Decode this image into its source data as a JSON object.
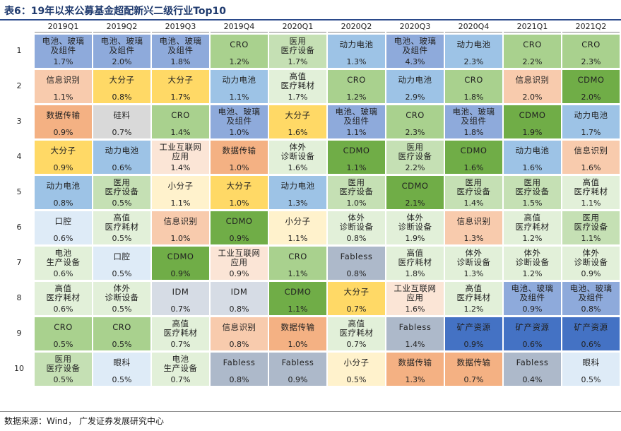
{
  "title": "表6：19年以来公募基金超配新兴二级行业Top10",
  "columns": [
    "2019Q1",
    "2019Q2",
    "2019Q3",
    "2019Q4",
    "2020Q1",
    "2020Q2",
    "2020Q3",
    "2020Q4",
    "2021Q1",
    "2021Q2"
  ],
  "row_numbers": [
    "1",
    "2",
    "3",
    "4",
    "5",
    "6",
    "7",
    "8",
    "9",
    "10"
  ],
  "colors": {
    "battery_glass": "#8eaadb",
    "power_battery": "#9dc3e6",
    "cro": "#a9d18e",
    "cdmo": "#70ad47",
    "medical_device": "#c5e0b4",
    "high_value_consumables": "#e2f0d9",
    "info_recognition": "#f8cbad",
    "macromolecule": "#ffd966",
    "data_transmission": "#f4b183",
    "silicon": "#d9d9d9",
    "ivd": "#e2f0d9",
    "industrial_internet": "#fbe5d6",
    "small_molecule": "#fff2cc",
    "oral": "#deebf7",
    "production_equipment": "#e2f0d9",
    "fabless": "#adb9ca",
    "idm": "#d6dce5",
    "mining": "#4472c4",
    "ophthalmology": "#deebf7"
  },
  "rows": [
    [
      {
        "name": "电池、玻璃\n及组件",
        "pct": "1.7%",
        "bg": "#8eaadb"
      },
      {
        "name": "电池、玻璃\n及组件",
        "pct": "2.0%",
        "bg": "#8eaadb"
      },
      {
        "name": "电池、玻璃\n及组件",
        "pct": "1.8%",
        "bg": "#8eaadb"
      },
      {
        "name": "CRO",
        "pct": "1.2%",
        "bg": "#a9d18e"
      },
      {
        "name": "医用\n医疗设备",
        "pct": "1.7%",
        "bg": "#c5e0b4"
      },
      {
        "name": "动力电池",
        "pct": "1.3%",
        "bg": "#9dc3e6"
      },
      {
        "name": "电池、玻璃\n及组件",
        "pct": "4.3%",
        "bg": "#8eaadb"
      },
      {
        "name": "动力电池",
        "pct": "2.3%",
        "bg": "#9dc3e6"
      },
      {
        "name": "CRO",
        "pct": "2.2%",
        "bg": "#a9d18e"
      },
      {
        "name": "CRO",
        "pct": "2.3%",
        "bg": "#a9d18e"
      }
    ],
    [
      {
        "name": "信息识别",
        "pct": "1.1%",
        "bg": "#f8cbad"
      },
      {
        "name": "大分子",
        "pct": "0.8%",
        "bg": "#ffd966"
      },
      {
        "name": "大分子",
        "pct": "1.7%",
        "bg": "#ffd966"
      },
      {
        "name": "动力电池",
        "pct": "1.1%",
        "bg": "#9dc3e6"
      },
      {
        "name": "高值\n医疗耗材",
        "pct": "1.7%",
        "bg": "#e2f0d9"
      },
      {
        "name": "CRO",
        "pct": "1.2%",
        "bg": "#a9d18e"
      },
      {
        "name": "动力电池",
        "pct": "2.9%",
        "bg": "#9dc3e6"
      },
      {
        "name": "CRO",
        "pct": "1.8%",
        "bg": "#a9d18e"
      },
      {
        "name": "信息识别",
        "pct": "2.0%",
        "bg": "#f8cbad"
      },
      {
        "name": "CDMO",
        "pct": "2.0%",
        "bg": "#70ad47"
      }
    ],
    [
      {
        "name": "数据传输",
        "pct": "0.9%",
        "bg": "#f4b183"
      },
      {
        "name": "硅料",
        "pct": "0.7%",
        "bg": "#d9d9d9"
      },
      {
        "name": "CRO",
        "pct": "1.4%",
        "bg": "#a9d18e"
      },
      {
        "name": "电池、玻璃\n及组件",
        "pct": "1.0%",
        "bg": "#8eaadb"
      },
      {
        "name": "大分子",
        "pct": "1.6%",
        "bg": "#ffd966"
      },
      {
        "name": "电池、玻璃\n及组件",
        "pct": "1.1%",
        "bg": "#8eaadb"
      },
      {
        "name": "CRO",
        "pct": "2.3%",
        "bg": "#a9d18e"
      },
      {
        "name": "电池、玻璃\n及组件",
        "pct": "1.8%",
        "bg": "#8eaadb"
      },
      {
        "name": "CDMO",
        "pct": "1.9%",
        "bg": "#70ad47"
      },
      {
        "name": "动力电池",
        "pct": "1.7%",
        "bg": "#9dc3e6"
      }
    ],
    [
      {
        "name": "大分子",
        "pct": "0.9%",
        "bg": "#ffd966"
      },
      {
        "name": "动力电池",
        "pct": "0.6%",
        "bg": "#9dc3e6"
      },
      {
        "name": "工业互联网\n应用",
        "pct": "1.4%",
        "bg": "#fbe5d6"
      },
      {
        "name": "数据传输",
        "pct": "1.0%",
        "bg": "#f4b183"
      },
      {
        "name": "体外\n诊断设备",
        "pct": "1.6%",
        "bg": "#e2f0d9"
      },
      {
        "name": "CDMO",
        "pct": "1.1%",
        "bg": "#70ad47"
      },
      {
        "name": "医用\n医疗设备",
        "pct": "2.2%",
        "bg": "#c5e0b4"
      },
      {
        "name": "CDMO",
        "pct": "1.6%",
        "bg": "#70ad47"
      },
      {
        "name": "动力电池",
        "pct": "1.6%",
        "bg": "#9dc3e6"
      },
      {
        "name": "信息识别",
        "pct": "1.6%",
        "bg": "#f8cbad"
      }
    ],
    [
      {
        "name": "动力电池",
        "pct": "0.8%",
        "bg": "#9dc3e6"
      },
      {
        "name": "医用\n医疗设备",
        "pct": "0.5%",
        "bg": "#c5e0b4"
      },
      {
        "name": "小分子",
        "pct": "1.1%",
        "bg": "#fff2cc"
      },
      {
        "name": "大分子",
        "pct": "1.0%",
        "bg": "#ffd966"
      },
      {
        "name": "动力电池",
        "pct": "1.3%",
        "bg": "#9dc3e6"
      },
      {
        "name": "医用\n医疗设备",
        "pct": "1.0%",
        "bg": "#c5e0b4"
      },
      {
        "name": "CDMO",
        "pct": "2.1%",
        "bg": "#70ad47"
      },
      {
        "name": "医用\n医疗设备",
        "pct": "1.4%",
        "bg": "#c5e0b4"
      },
      {
        "name": "医用\n医疗设备",
        "pct": "1.5%",
        "bg": "#c5e0b4"
      },
      {
        "name": "高值\n医疗耗材",
        "pct": "1.1%",
        "bg": "#e2f0d9"
      }
    ],
    [
      {
        "name": "口腔",
        "pct": "0.6%",
        "bg": "#deebf7"
      },
      {
        "name": "高值\n医疗耗材",
        "pct": "0.5%",
        "bg": "#e2f0d9"
      },
      {
        "name": "信息识别",
        "pct": "1.0%",
        "bg": "#f8cbad"
      },
      {
        "name": "CDMO",
        "pct": "0.9%",
        "bg": "#70ad47"
      },
      {
        "name": "小分子",
        "pct": "1.1%",
        "bg": "#fff2cc"
      },
      {
        "name": "体外\n诊断设备",
        "pct": "0.8%",
        "bg": "#e2f0d9"
      },
      {
        "name": "体外\n诊断设备",
        "pct": "1.9%",
        "bg": "#e2f0d9"
      },
      {
        "name": "信息识别",
        "pct": "1.3%",
        "bg": "#f8cbad"
      },
      {
        "name": "高值\n医疗耗材",
        "pct": "1.2%",
        "bg": "#e2f0d9"
      },
      {
        "name": "医用\n医疗设备",
        "pct": "1.1%",
        "bg": "#c5e0b4"
      }
    ],
    [
      {
        "name": "电池\n生产设备",
        "pct": "0.6%",
        "bg": "#e2f0d9"
      },
      {
        "name": "口腔",
        "pct": "0.5%",
        "bg": "#deebf7"
      },
      {
        "name": "CDMO",
        "pct": "0.9%",
        "bg": "#70ad47"
      },
      {
        "name": "工业互联网\n应用",
        "pct": "0.9%",
        "bg": "#fbe5d6"
      },
      {
        "name": "CRO",
        "pct": "1.1%",
        "bg": "#a9d18e"
      },
      {
        "name": "Fabless",
        "pct": "0.8%",
        "bg": "#adb9ca"
      },
      {
        "name": "高值\n医疗耗材",
        "pct": "1.8%",
        "bg": "#e2f0d9"
      },
      {
        "name": "体外\n诊断设备",
        "pct": "1.3%",
        "bg": "#e2f0d9"
      },
      {
        "name": "体外\n诊断设备",
        "pct": "1.2%",
        "bg": "#e2f0d9"
      },
      {
        "name": "体外\n诊断设备",
        "pct": "0.9%",
        "bg": "#e2f0d9"
      }
    ],
    [
      {
        "name": "高值\n医疗耗材",
        "pct": "0.6%",
        "bg": "#e2f0d9"
      },
      {
        "name": "体外\n诊断设备",
        "pct": "0.5%",
        "bg": "#e2f0d9"
      },
      {
        "name": "IDM",
        "pct": "0.7%",
        "bg": "#d6dce5"
      },
      {
        "name": "IDM",
        "pct": "0.8%",
        "bg": "#d6dce5"
      },
      {
        "name": "CDMO",
        "pct": "1.1%",
        "bg": "#70ad47"
      },
      {
        "name": "大分子",
        "pct": "0.7%",
        "bg": "#ffd966"
      },
      {
        "name": "工业互联网\n应用",
        "pct": "1.6%",
        "bg": "#fbe5d6"
      },
      {
        "name": "高值\n医疗耗材",
        "pct": "1.2%",
        "bg": "#e2f0d9"
      },
      {
        "name": "电池、玻璃\n及组件",
        "pct": "0.9%",
        "bg": "#8eaadb"
      },
      {
        "name": "电池、玻璃\n及组件",
        "pct": "0.8%",
        "bg": "#8eaadb"
      }
    ],
    [
      {
        "name": "CRO",
        "pct": "0.5%",
        "bg": "#a9d18e"
      },
      {
        "name": "CRO",
        "pct": "0.5%",
        "bg": "#a9d18e"
      },
      {
        "name": "高值\n医疗耗材",
        "pct": "0.7%",
        "bg": "#e2f0d9"
      },
      {
        "name": "信息识别",
        "pct": "0.8%",
        "bg": "#f8cbad"
      },
      {
        "name": "数据传输",
        "pct": "1.0%",
        "bg": "#f4b183"
      },
      {
        "name": "高值\n医疗耗材",
        "pct": "0.7%",
        "bg": "#e2f0d9"
      },
      {
        "name": "Fabless",
        "pct": "1.4%",
        "bg": "#adb9ca"
      },
      {
        "name": "矿产资源",
        "pct": "0.9%",
        "bg": "#4472c4"
      },
      {
        "name": "矿产资源",
        "pct": "0.6%",
        "bg": "#4472c4"
      },
      {
        "name": "矿产资源",
        "pct": "0.6%",
        "bg": "#4472c4"
      }
    ],
    [
      {
        "name": "医用\n医疗设备",
        "pct": "0.5%",
        "bg": "#c5e0b4"
      },
      {
        "name": "眼科",
        "pct": "0.5%",
        "bg": "#deebf7"
      },
      {
        "name": "电池\n生产设备",
        "pct": "0.7%",
        "bg": "#e2f0d9"
      },
      {
        "name": "Fabless",
        "pct": "0.8%",
        "bg": "#adb9ca"
      },
      {
        "name": "Fabless",
        "pct": "0.9%",
        "bg": "#adb9ca"
      },
      {
        "name": "小分子",
        "pct": "0.5%",
        "bg": "#fff2cc"
      },
      {
        "name": "数据传输",
        "pct": "1.3%",
        "bg": "#f4b183"
      },
      {
        "name": "数据传输",
        "pct": "0.7%",
        "bg": "#f4b183"
      },
      {
        "name": "Fabless",
        "pct": "0.4%",
        "bg": "#adb9ca"
      },
      {
        "name": "眼科",
        "pct": "0.5%",
        "bg": "#deebf7"
      }
    ]
  ],
  "footer": "数据来源：Wind， 广发证券发展研究中心"
}
